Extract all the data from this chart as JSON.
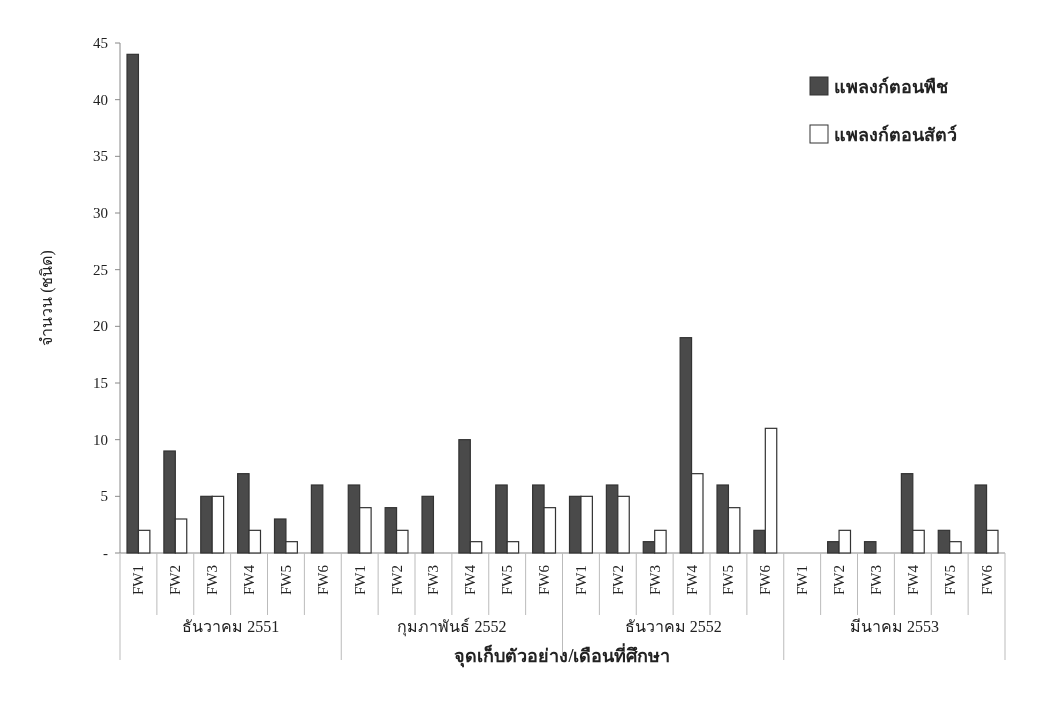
{
  "chart_data": {
    "type": "bar",
    "xlabel": "จุดเก็บตัวอย่าง/เดือนที่ศึกษา",
    "ylabel": "จำนวน (ชนิด)",
    "categories": [
      "FW1",
      "FW2",
      "FW3",
      "FW4",
      "FW5",
      "FW6",
      "FW1",
      "FW2",
      "FW3",
      "FW4",
      "FW5",
      "FW6",
      "FW1",
      "FW2",
      "FW3",
      "FW4",
      "FW5",
      "FW6",
      "FW1",
      "FW2",
      "FW3",
      "FW4",
      "FW5",
      "FW6"
    ],
    "series": [
      {
        "name": "แพลงก์ตอนพืช",
        "color": "#4a4a4a",
        "values": [
          44,
          9,
          5,
          7,
          3,
          6,
          6,
          4,
          5,
          10,
          6,
          6,
          5,
          6,
          1,
          19,
          6,
          2,
          0,
          1,
          1,
          7,
          2,
          6
        ]
      },
      {
        "name": "แพลงก์ตอนสัตว์",
        "color": "#ffffff",
        "values": [
          2,
          3,
          5,
          2,
          1,
          0,
          4,
          2,
          0,
          1,
          1,
          4,
          5,
          5,
          2,
          7,
          4,
          11,
          0,
          2,
          0,
          2,
          1,
          2
        ]
      }
    ],
    "annotations": [
      "ธันวาคม 2551",
      "กุมภาพันธ์ 2552",
      "ธันวาคม 2552",
      "มีนาคม 2553"
    ],
    "ylim": [
      0,
      45
    ],
    "yticks": [
      {
        "value": 0,
        "label": "-"
      },
      5,
      10,
      15,
      20,
      25,
      30,
      35,
      40,
      45
    ],
    "legend": "top right",
    "grid": false
  }
}
